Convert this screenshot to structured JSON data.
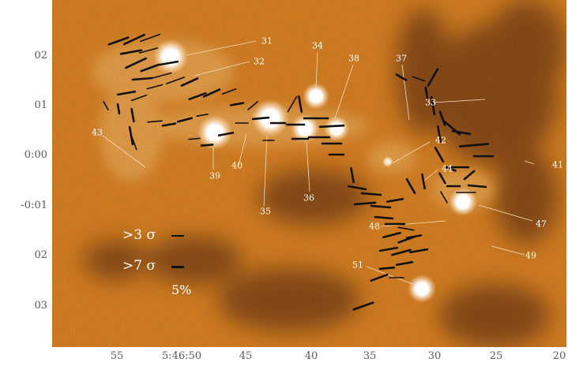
{
  "axes": {
    "y_tick_labels": [
      "02",
      "01",
      "0:00",
      "-0:01",
      "02",
      "03"
    ],
    "x_tick_labels": [
      "55",
      "5:46:50",
      "45",
      "40",
      "35",
      "30",
      "25",
      "20"
    ]
  },
  "source_labels": [
    "31",
    "32",
    "34",
    "38",
    "37",
    "33",
    "42",
    "44",
    "41",
    "47",
    "43",
    "39",
    "40",
    "35",
    "36",
    "48",
    "49",
    "51"
  ],
  "legend": {
    "row1": ">3 σ",
    "row2": ">7 σ",
    "scale": "5%"
  },
  "colors": {
    "background": "#e0821e",
    "dark_structure": "#5a2a0c",
    "bright_source": "#ffffff",
    "vector": "#111111",
    "label": "#ffffff",
    "leader_line": "#f2ddbf"
  }
}
